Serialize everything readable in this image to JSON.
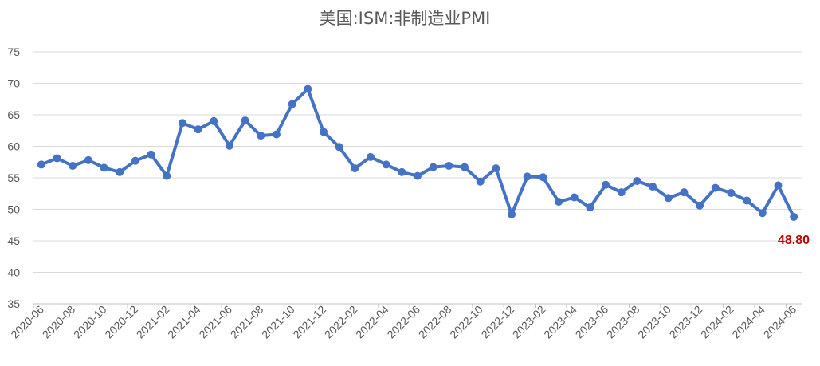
{
  "chart_data": {
    "type": "line",
    "title": "美国:ISM:非制造业PMI",
    "xlabel": "",
    "ylabel": "",
    "ylim": [
      35,
      75
    ],
    "yticks": [
      35,
      40,
      45,
      50,
      55,
      60,
      65,
      70,
      75
    ],
    "grid": true,
    "legend": "none",
    "line_color": "#4472C4",
    "label_color": "#C00000",
    "x": [
      "2020-06",
      "2020-07",
      "2020-08",
      "2020-09",
      "2020-10",
      "2020-11",
      "2020-12",
      "2021-01",
      "2021-02",
      "2021-03",
      "2021-04",
      "2021-05",
      "2021-06",
      "2021-07",
      "2021-08",
      "2021-09",
      "2021-10",
      "2021-11",
      "2021-12",
      "2022-01",
      "2022-02",
      "2022-03",
      "2022-04",
      "2022-05",
      "2022-06",
      "2022-07",
      "2022-08",
      "2022-09",
      "2022-10",
      "2022-11",
      "2022-12",
      "2023-01",
      "2023-02",
      "2023-03",
      "2023-04",
      "2023-05",
      "2023-06",
      "2023-07",
      "2023-08",
      "2023-09",
      "2023-10",
      "2023-11",
      "2023-12",
      "2024-01",
      "2024-02",
      "2024-03",
      "2024-04",
      "2024-05",
      "2024-06"
    ],
    "xtick_labels": [
      "2020-06",
      "2020-08",
      "2020-10",
      "2020-12",
      "2021-02",
      "2021-04",
      "2021-06",
      "2021-08",
      "2021-10",
      "2021-12",
      "2022-02",
      "2022-04",
      "2022-06",
      "2022-08",
      "2022-10",
      "2022-12",
      "2023-02",
      "2023-04",
      "2023-06",
      "2023-08",
      "2023-10",
      "2023-12",
      "2024-02",
      "2024-04",
      "2024-06"
    ],
    "series": [
      {
        "values": [
          57.1,
          58.1,
          56.9,
          57.8,
          56.6,
          55.9,
          57.7,
          58.7,
          55.3,
          63.7,
          62.7,
          64.0,
          60.1,
          64.1,
          61.7,
          61.9,
          66.7,
          69.1,
          62.3,
          59.9,
          56.5,
          58.3,
          57.1,
          55.9,
          55.3,
          56.7,
          56.9,
          56.7,
          54.4,
          56.5,
          49.2,
          55.2,
          55.1,
          51.2,
          51.9,
          50.3,
          53.9,
          52.7,
          54.5,
          53.6,
          51.8,
          52.7,
          50.6,
          53.4,
          52.6,
          51.4,
          49.4,
          53.8,
          48.8
        ]
      }
    ],
    "last_value_label": "48.80"
  }
}
